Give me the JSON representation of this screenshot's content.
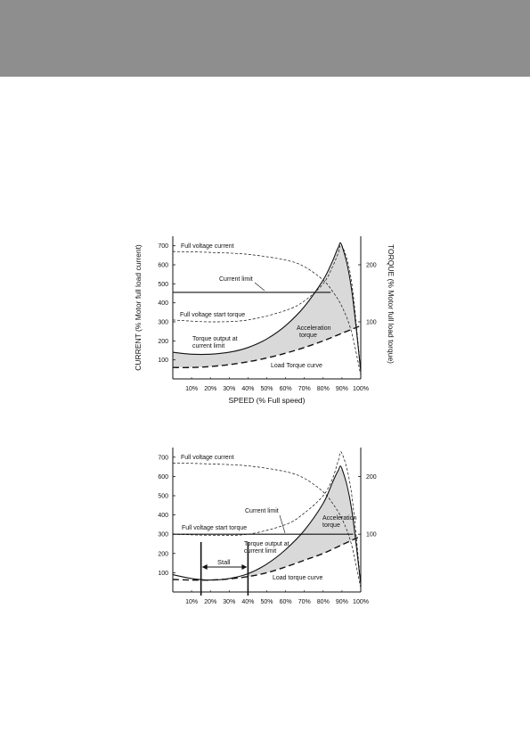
{
  "chart_data": [
    {
      "type": "line",
      "xlabel": "SPEED (% Full speed)",
      "ylabel": "CURRENT (% Motor full load current)",
      "y2label": "TORQUE (% Motor full load torque)",
      "x_ticks": [
        "10%",
        "20%",
        "30%",
        "40%",
        "50%",
        "60%",
        "70%",
        "80%",
        "90%",
        "100%"
      ],
      "y_ticks": [
        100,
        200,
        300,
        400,
        500,
        600,
        700
      ],
      "y2_ticks": [
        100,
        200
      ],
      "xlim": [
        0,
        100
      ],
      "ylim": [
        0,
        750
      ],
      "y2_equivalent_current": {
        "100": 300,
        "200": 600
      },
      "series": [
        {
          "label": "Full voltage current",
          "style": "thin-dashed",
          "x": [
            0,
            20,
            40,
            60,
            70,
            80,
            85,
            90,
            95,
            100
          ],
          "y": [
            670,
            665,
            655,
            625,
            590,
            520,
            460,
            380,
            250,
            20
          ]
        },
        {
          "label": "Current limit",
          "style": "solid",
          "x": [
            0,
            84
          ],
          "y": [
            455,
            455
          ]
        },
        {
          "label": "Full voltage start torque",
          "style": "thin-dashed",
          "x": [
            0,
            20,
            40,
            60,
            70,
            80,
            85,
            88,
            90,
            95,
            100
          ],
          "y": [
            310,
            300,
            310,
            360,
            410,
            500,
            590,
            660,
            700,
            520,
            40
          ]
        },
        {
          "label": "Torque output at current limit",
          "style": "solid",
          "x": [
            0,
            10,
            20,
            30,
            40,
            50,
            60,
            70,
            80,
            85,
            88,
            90,
            95,
            100
          ],
          "y": [
            140,
            130,
            130,
            140,
            165,
            210,
            280,
            380,
            520,
            620,
            690,
            700,
            480,
            40
          ]
        },
        {
          "label": "Load Torque curve",
          "style": "thick-dashed",
          "x": [
            0,
            10,
            20,
            30,
            40,
            50,
            60,
            70,
            80,
            90,
            100
          ],
          "y": [
            60,
            60,
            65,
            75,
            90,
            110,
            135,
            165,
            200,
            240,
            280
          ]
        }
      ],
      "annotations": [
        "Full voltage current",
        "Current limit",
        "Full voltage start torque",
        "Acceleration torque",
        "Torque output at current limit",
        "Load Torque curve"
      ],
      "shaded_region": "Acceleration torque"
    },
    {
      "type": "line",
      "x_ticks": [
        "10%",
        "20%",
        "30%",
        "40%",
        "50%",
        "60%",
        "70%",
        "80%",
        "90%",
        "100%"
      ],
      "y_ticks": [
        100,
        200,
        300,
        400,
        500,
        600,
        700
      ],
      "y2_ticks": [
        100,
        200
      ],
      "xlim": [
        0,
        100
      ],
      "ylim": [
        0,
        750
      ],
      "y2_equivalent_current": {
        "100": 300,
        "200": 600
      },
      "series": [
        {
          "label": "Full voltage current",
          "style": "thin-dashed",
          "x": [
            0,
            20,
            40,
            60,
            70,
            80,
            85,
            90,
            95,
            100
          ],
          "y": [
            670,
            665,
            655,
            625,
            590,
            520,
            460,
            380,
            250,
            20
          ]
        },
        {
          "label": "Current limit",
          "style": "solid",
          "x": [
            0,
            96
          ],
          "y": [
            300,
            300
          ]
        },
        {
          "label": "Full voltage start torque",
          "style": "thin-dashed",
          "x": [
            0,
            20,
            40,
            60,
            70,
            80,
            85,
            88,
            90,
            95,
            100
          ],
          "y": [
            300,
            295,
            300,
            350,
            410,
            500,
            590,
            680,
            720,
            520,
            40
          ]
        },
        {
          "label": "Torque output at current limit",
          "style": "solid",
          "x": [
            0,
            10,
            20,
            30,
            40,
            50,
            60,
            70,
            80,
            85,
            88,
            90,
            95,
            100
          ],
          "y": [
            90,
            70,
            62,
            70,
            95,
            145,
            220,
            320,
            460,
            570,
            630,
            640,
            440,
            40
          ]
        },
        {
          "label": "Load torque curve",
          "style": "thick-dashed",
          "x": [
            0,
            10,
            20,
            30,
            40,
            50,
            60,
            70,
            80,
            90,
            100
          ],
          "y": [
            65,
            62,
            62,
            68,
            80,
            100,
            130,
            165,
            200,
            245,
            290
          ]
        }
      ],
      "stall_region": {
        "label": "Stall",
        "x_from": 15,
        "x_to": 40
      },
      "annotations": [
        "Full voltage current",
        "Current limit",
        "Full voltage start torque",
        "Acceleration torque",
        "Torque output at current limit",
        "Load torque curve",
        "Stall"
      ],
      "shaded_region": "Acceleration torque"
    }
  ],
  "labels": {
    "c1": {
      "full_voltage_current": "Full voltage current",
      "current_limit": "Current limit",
      "full_voltage_start_torque": "Full voltage start torque",
      "acceleration_1": "Acceleration",
      "acceleration_2": "torque",
      "torque_output_1": "Torque output at",
      "torque_output_2": "current limit",
      "load_torque": "Load Torque curve"
    },
    "c2": {
      "full_voltage_current": "Full voltage current",
      "current_limit": "Current limit",
      "full_voltage_start_torque": "Full voltage start torque",
      "acceleration_1": "Acceleration",
      "acceleration_2": "torque",
      "torque_output_1": "Torque output at",
      "torque_output_2": "current limit",
      "load_torque": "Load torque curve",
      "stall": "Stall"
    }
  }
}
